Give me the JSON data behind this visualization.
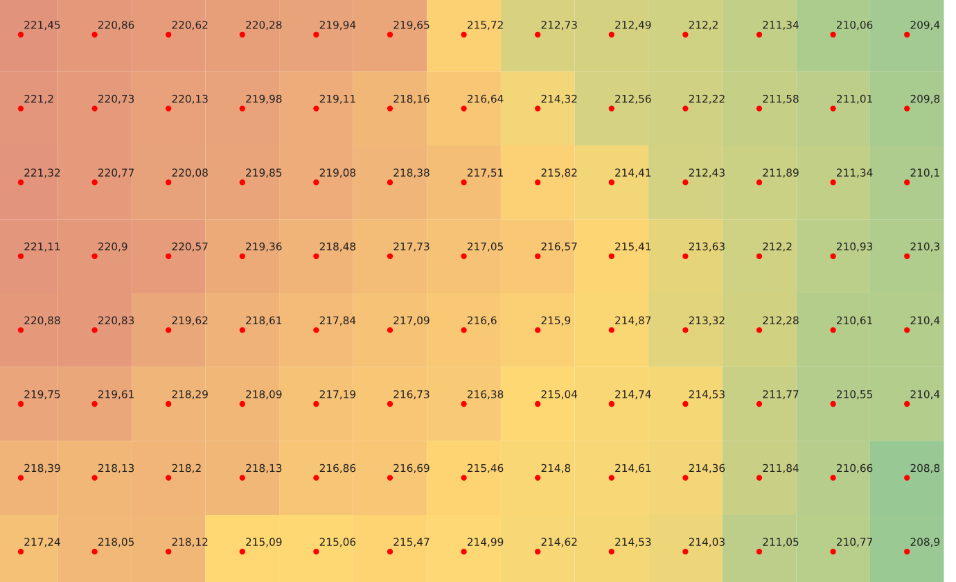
{
  "chart_data": {
    "type": "heatmap",
    "categories": [
      null,
      null,
      null,
      null,
      null,
      null,
      null,
      null,
      null,
      null,
      null,
      null,
      null
    ],
    "y_categories": [
      null,
      null,
      null,
      null,
      null,
      null,
      null,
      null
    ],
    "cells": [
      [
        221.45,
        220.86,
        220.62,
        220.28,
        219.94,
        219.65,
        215.72,
        212.73,
        212.49,
        212.2,
        211.34,
        210.06,
        209.4
      ],
      [
        221.2,
        220.73,
        220.13,
        219.98,
        219.11,
        218.16,
        216.64,
        214.32,
        212.56,
        212.22,
        211.58,
        211.01,
        209.8
      ],
      [
        221.32,
        220.77,
        220.08,
        219.85,
        219.08,
        218.38,
        217.51,
        215.82,
        214.41,
        212.43,
        211.89,
        211.34,
        210.1
      ],
      [
        221.11,
        220.9,
        220.57,
        219.36,
        218.48,
        217.73,
        217.05,
        216.57,
        215.41,
        213.63,
        212.2,
        210.93,
        210.3
      ],
      [
        220.88,
        220.83,
        219.62,
        218.61,
        217.84,
        217.09,
        216.6,
        215.9,
        214.87,
        213.32,
        212.28,
        210.61,
        210.4
      ],
      [
        219.75,
        219.61,
        218.29,
        218.09,
        217.19,
        216.73,
        216.38,
        215.04,
        214.74,
        214.53,
        211.77,
        210.55,
        210.4
      ],
      [
        218.39,
        218.13,
        218.2,
        218.13,
        216.86,
        216.69,
        215.46,
        214.8,
        214.61,
        214.36,
        211.84,
        210.66,
        208.8
      ],
      [
        217.24,
        218.05,
        218.12,
        215.09,
        215.06,
        215.47,
        214.99,
        214.62,
        214.53,
        214.03,
        211.05,
        210.77,
        208.9
      ]
    ],
    "cell_labels": [
      [
        "221,45",
        "220,86",
        "220,62",
        "220,28",
        "219,94",
        "219,65",
        "215,72",
        "212,73",
        "212,49",
        "212,2",
        "211,34",
        "210,06",
        "209,4"
      ],
      [
        "221,2",
        "220,73",
        "220,13",
        "219,98",
        "219,11",
        "218,16",
        "216,64",
        "214,32",
        "212,56",
        "212,22",
        "211,58",
        "211,01",
        "209,8"
      ],
      [
        "221,32",
        "220,77",
        "220,08",
        "219,85",
        "219,08",
        "218,38",
        "217,51",
        "215,82",
        "214,41",
        "212,43",
        "211,89",
        "211,34",
        "210,1"
      ],
      [
        "221,11",
        "220,9",
        "220,57",
        "219,36",
        "218,48",
        "217,73",
        "217,05",
        "216,57",
        "215,41",
        "213,63",
        "212,2",
        "210,93",
        "210,3"
      ],
      [
        "220,88",
        "220,83",
        "219,62",
        "218,61",
        "217,84",
        "217,09",
        "216,6",
        "215,9",
        "214,87",
        "213,32",
        "212,28",
        "210,61",
        "210,4"
      ],
      [
        "219,75",
        "219,61",
        "218,29",
        "218,09",
        "217,19",
        "216,73",
        "216,38",
        "215,04",
        "214,74",
        "214,53",
        "211,77",
        "210,55",
        "210,4"
      ],
      [
        "218,39",
        "218,13",
        "218,2",
        "218,13",
        "216,86",
        "216,69",
        "215,46",
        "214,8",
        "214,61",
        "214,36",
        "211,84",
        "210,66",
        "208,8"
      ],
      [
        "217,24",
        "218,05",
        "218,12",
        "215,09",
        "215,06",
        "215,47",
        "214,99",
        "214,62",
        "214,53",
        "214,03",
        "211,05",
        "210,77",
        "208,9"
      ]
    ],
    "colors": [
      "#98c995",
      "#ffd873",
      "#e2937c"
    ],
    "marker": "circle"
  }
}
